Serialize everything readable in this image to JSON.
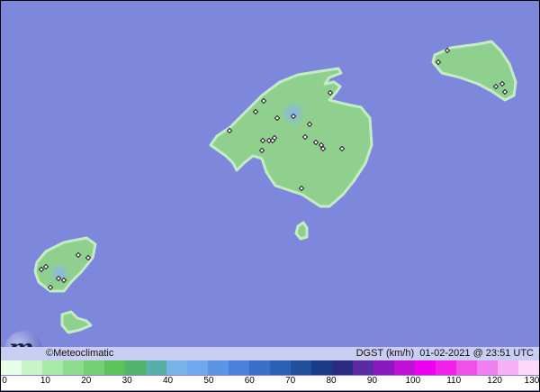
{
  "map": {
    "sea_color": "#7d88dc",
    "land_color": "#8fd08f",
    "shore_color": "#c4ecc4",
    "islands": [
      "Mallorca",
      "Menorca",
      "Ibiza",
      "Formentera",
      "Cabrera"
    ]
  },
  "info": {
    "credit": "©Meteoclimatic",
    "title": "DGST (km/h)  01-02-2021 @ 23:51 UTC"
  },
  "legend": {
    "ticks": [
      "0",
      "10",
      "20",
      "30",
      "40",
      "50",
      "60",
      "70",
      "80",
      "90",
      "100",
      "110",
      "120",
      "130"
    ],
    "colors": [
      "#e6ffe6",
      "#c8f5c8",
      "#a8eaa8",
      "#8ddc8d",
      "#74d074",
      "#5cc25c",
      "#50b46c",
      "#5aaea8",
      "#78b4e6",
      "#70a8f0",
      "#5c94e6",
      "#4a80dc",
      "#3870c8",
      "#2c60b4",
      "#20509c",
      "#1a3c88",
      "#2a2a80",
      "#5a2aa0",
      "#8a1ac0",
      "#c010d8",
      "#f000f0",
      "#f020e8",
      "#f050e8",
      "#f080f0",
      "#f8b0f4",
      "#fcd8fa"
    ]
  }
}
